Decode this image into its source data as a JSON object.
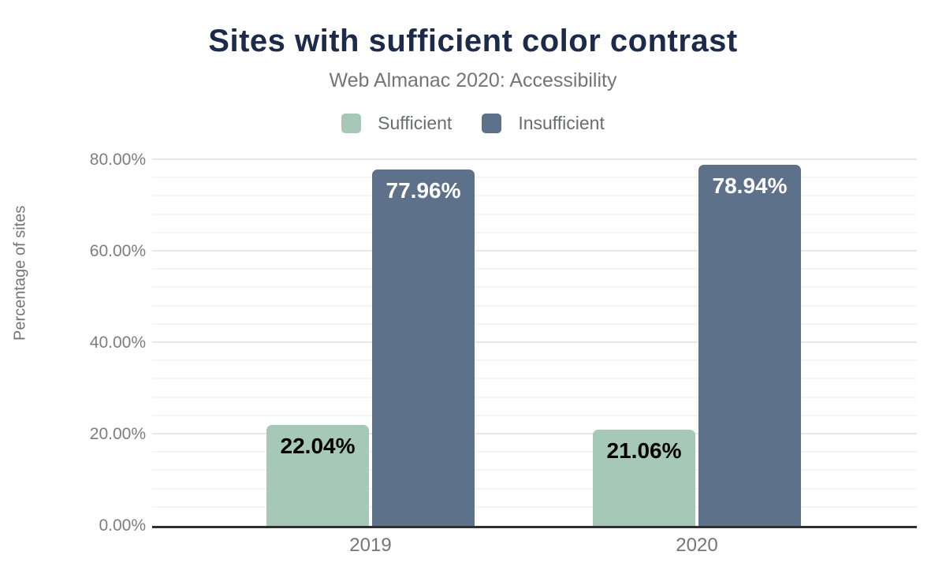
{
  "chart_data": {
    "type": "bar",
    "title": "Sites with sufficient color contrast",
    "subtitle": "Web Almanac 2020: Accessibility",
    "categories": [
      "2019",
      "2020"
    ],
    "series": [
      {
        "name": "Sufficient",
        "color": "#a6c8b6",
        "values": [
          22.04,
          21.06
        ],
        "labels": [
          "22.04%",
          "21.06%"
        ],
        "label_color": "#000000"
      },
      {
        "name": "Insufficient",
        "color": "#5e718a",
        "values": [
          77.96,
          78.94
        ],
        "labels": [
          "77.96%",
          "78.94%"
        ],
        "label_color": "#ffffff"
      }
    ],
    "xlabel": "",
    "ylabel": "Percentage of sites",
    "ylim": [
      0,
      83.1
    ],
    "y_ticks": [
      {
        "value": 0,
        "label": "0.00%"
      },
      {
        "value": 20,
        "label": "20.00%"
      },
      {
        "value": 40,
        "label": "40.00%"
      },
      {
        "value": 60,
        "label": "60.00%"
      },
      {
        "value": 80,
        "label": "80.00%"
      }
    ],
    "y_minor_step": 4,
    "grid": true,
    "legend_position": "top"
  },
  "colors": {
    "title_text": "#1c2b4a",
    "subtitle_text": "#757575",
    "axis_text": "#7d7d7d",
    "legend_text": "#6a6d70",
    "baseline": "#2f2f2f",
    "grid_major": "#e8e8e8",
    "grid_minor": "#f5f5f5",
    "background": "#ffffff"
  }
}
